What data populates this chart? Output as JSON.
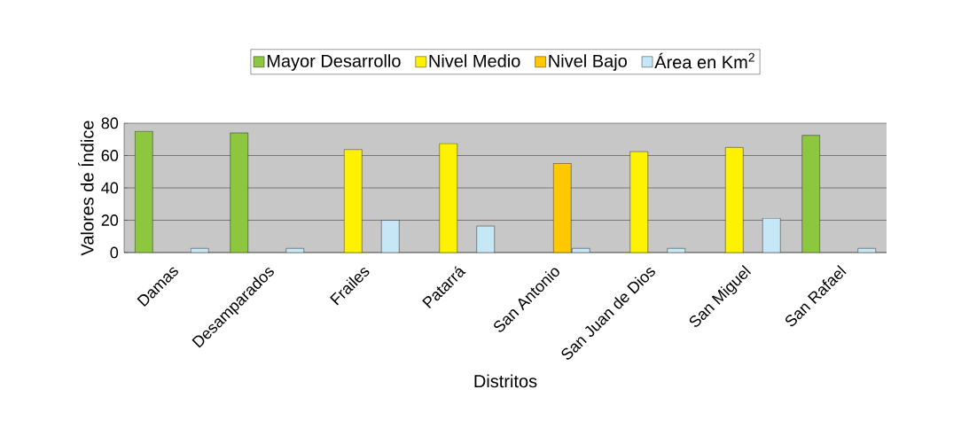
{
  "chart_data": {
    "type": "bar",
    "xlabel": "Distritos",
    "ylabel": "Valores de Índice",
    "categories": [
      "Damas",
      "Desamparados",
      "Frailes",
      "Patarrá",
      "San Antonio",
      "San Juan de Dios",
      "San Miguel",
      "San Rafael"
    ],
    "series": [
      {
        "name": "Mayor Desarrollo",
        "color": "#8dc63f",
        "values": [
          75,
          74,
          null,
          null,
          null,
          null,
          null,
          72.5
        ]
      },
      {
        "name": "Nivel Medio",
        "color": "#fff200",
        "values": [
          null,
          null,
          63.7,
          67.4,
          null,
          62.4,
          65,
          null
        ]
      },
      {
        "name": "Nivel Bajo",
        "color": "#ffc800",
        "values": [
          null,
          null,
          null,
          null,
          55.1,
          null,
          null,
          null
        ]
      },
      {
        "name": "Área en Km$^{2}$",
        "color": "#c6e7f6",
        "values": [
          2.6,
          2.6,
          20,
          16.4,
          2.6,
          2.6,
          21.3,
          2.6
        ]
      }
    ],
    "ylim": [
      0,
      80
    ],
    "yticks": [
      0,
      20,
      40,
      60,
      80
    ],
    "grid": "y",
    "legend": "top"
  }
}
